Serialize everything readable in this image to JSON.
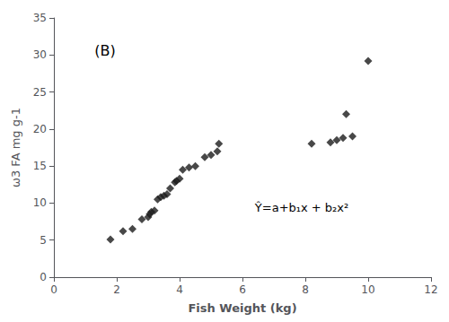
{
  "chart_data": {
    "type": "scatter",
    "x": [
      1.8,
      2.2,
      2.5,
      2.8,
      3.0,
      3.05,
      3.1,
      3.2,
      3.3,
      3.4,
      3.5,
      3.6,
      3.7,
      3.85,
      3.9,
      4.0,
      4.1,
      4.3,
      4.5,
      4.8,
      5.0,
      5.2,
      5.25,
      8.2,
      8.8,
      9.0,
      9.2,
      9.3,
      9.5,
      10.0
    ],
    "values": [
      5.1,
      6.2,
      6.5,
      7.8,
      8.1,
      8.5,
      8.8,
      9.0,
      10.5,
      10.8,
      11.0,
      11.2,
      12.0,
      12.8,
      13.0,
      13.3,
      14.5,
      14.8,
      15.0,
      16.2,
      16.5,
      17.0,
      18.0,
      18.0,
      18.2,
      18.5,
      18.8,
      22.0,
      19.0,
      29.2
    ],
    "color": "#1a1a1a",
    "marker": "diamond",
    "xlabel": "Fish Weight (kg)",
    "ylabel": "ω3 FA mg g-1",
    "xlim": [
      0,
      12
    ],
    "ylim": [
      0,
      35
    ],
    "xticks": [
      0,
      2,
      4,
      6,
      8,
      10,
      12
    ],
    "yticks": [
      0,
      5,
      10,
      15,
      20,
      25,
      30,
      35
    ],
    "grid": false,
    "annotations": [
      "Ŷ=a+b₁x + b₂x²",
      "(B)"
    ]
  }
}
